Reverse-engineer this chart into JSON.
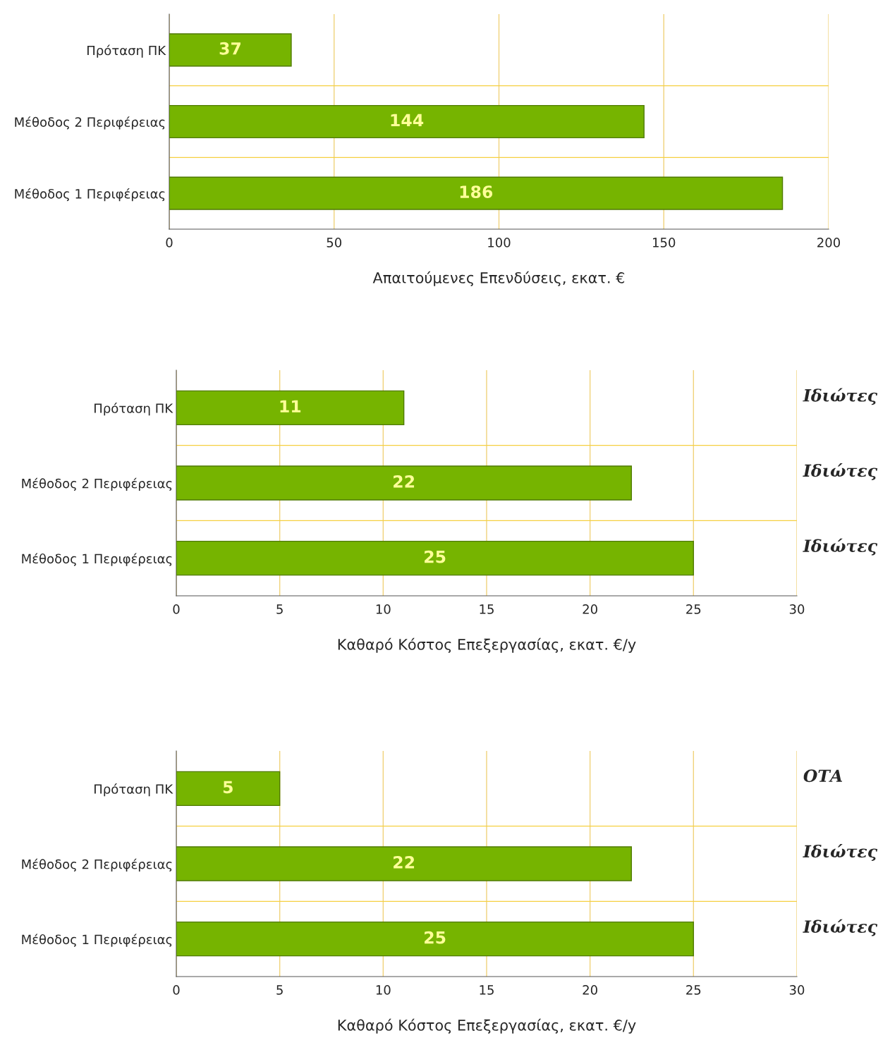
{
  "chart_data": [
    {
      "type": "bar",
      "orientation": "horizontal",
      "categories": [
        "Πρόταση ΠΚ",
        "Μέθοδος 2 Περιφέρειας",
        "Μέθοδος 1 Περιφέρειας"
      ],
      "values": [
        37,
        144,
        186
      ],
      "color": "#76b400",
      "xlim": [
        0,
        200
      ],
      "xticks": [
        0,
        50,
        100,
        150,
        200
      ],
      "xlabel": "Απαιτούμενες Επενδύσεις, εκατ. €",
      "data_labels": true,
      "grid": "x"
    },
    {
      "type": "bar",
      "orientation": "horizontal",
      "categories": [
        "Πρόταση ΠΚ",
        "Μέθοδος 2 Περιφέρειας",
        "Μέθοδος 1 Περιφέρειας"
      ],
      "values": [
        11,
        22,
        25
      ],
      "color": "#76b400",
      "xlim": [
        0,
        30
      ],
      "xticks": [
        0,
        5,
        10,
        15,
        20,
        25,
        30
      ],
      "xlabel": "Καθαρό Κόστος Επεξεργασίας, εκατ. €/y",
      "data_labels": true,
      "grid": "x",
      "annotations": [
        "Ιδιώτες",
        "Ιδιώτες",
        "Ιδιώτες"
      ]
    },
    {
      "type": "bar",
      "orientation": "horizontal",
      "categories": [
        "Πρόταση ΠΚ",
        "Μέθοδος 2 Περιφέρειας",
        "Μέθοδος 1 Περιφέρειας"
      ],
      "values": [
        5,
        22,
        25
      ],
      "color": "#76b400",
      "xlim": [
        0,
        30
      ],
      "xticks": [
        0,
        5,
        10,
        15,
        20,
        25,
        30
      ],
      "xlabel": "Καθαρό Κόστος Επεξεργασίας, εκατ. €/y",
      "data_labels": true,
      "grid": "x",
      "annotations": [
        "ΟΤΑ",
        "Ιδιώτες",
        "Ιδιώτες"
      ]
    }
  ]
}
